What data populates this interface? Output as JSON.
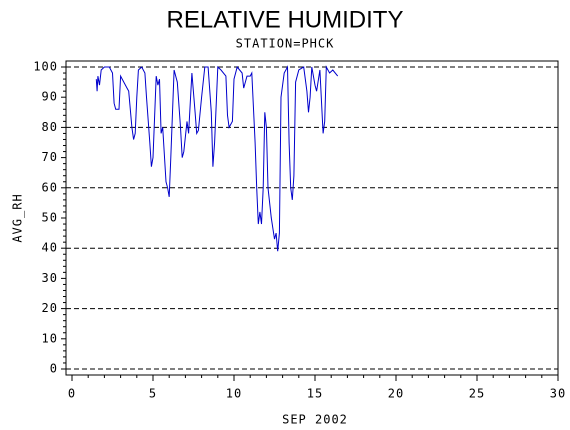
{
  "chart_data": {
    "type": "line",
    "title": "RELATIVE HUMIDITY",
    "subtitle": "STATION=PHCK",
    "x_label": "SEP 2002",
    "y_label": "AVG_RH",
    "xlim": [
      0,
      30
    ],
    "xticks": [
      0,
      5,
      10,
      15,
      20,
      25,
      30
    ],
    "ylim": [
      0,
      100
    ],
    "yticks": [
      0,
      10,
      20,
      30,
      40,
      50,
      60,
      70,
      80,
      90,
      100
    ],
    "grid": true,
    "series": [
      {
        "color": "#0000cc",
        "x": [
          1.5,
          1.55,
          1.6,
          1.7,
          1.8,
          2.0,
          2.3,
          2.5,
          2.6,
          2.7,
          2.9,
          3.0,
          3.2,
          3.5,
          3.7,
          3.8,
          3.9,
          4.0,
          4.1,
          4.3,
          4.5,
          4.6,
          4.8,
          4.9,
          5.0,
          5.2,
          5.3,
          5.4,
          5.5,
          5.6,
          5.8,
          5.9,
          6.0,
          6.1,
          6.3,
          6.5,
          6.7,
          6.8,
          6.9,
          7.1,
          7.2,
          7.4,
          7.6,
          7.7,
          7.8,
          8.0,
          8.2,
          8.4,
          8.6,
          8.7,
          8.8,
          9.0,
          9.2,
          9.5,
          9.6,
          9.7,
          9.9,
          10.0,
          10.2,
          10.5,
          10.6,
          10.8,
          11.0,
          11.1,
          11.3,
          11.4,
          11.5,
          11.6,
          11.7,
          11.8,
          11.9,
          12.0,
          12.1,
          12.3,
          12.5,
          12.6,
          12.7,
          12.8,
          12.9,
          13.1,
          13.3,
          13.4,
          13.5,
          13.6,
          13.7,
          13.8,
          14.0,
          14.3,
          14.5,
          14.6,
          14.7,
          14.8,
          15.0,
          15.1,
          15.3,
          15.5,
          15.6,
          15.7,
          15.9,
          16.1,
          16.4
        ],
        "values": [
          96,
          92,
          97,
          94,
          99,
          100,
          100,
          98,
          88,
          86,
          86,
          97,
          95,
          92,
          80,
          76,
          78,
          90,
          99,
          100,
          98,
          90,
          75,
          67,
          70,
          97,
          94,
          96,
          78,
          80,
          62,
          60,
          57,
          70,
          99,
          95,
          80,
          70,
          72,
          82,
          78,
          98,
          85,
          78,
          79,
          90,
          100,
          100,
          85,
          67,
          75,
          100,
          99,
          97,
          84,
          80,
          82,
          96,
          100,
          98,
          93,
          97,
          97,
          98,
          75,
          60,
          48,
          52,
          48,
          60,
          85,
          80,
          60,
          50,
          43,
          45,
          39,
          45,
          90,
          98,
          100,
          75,
          60,
          56,
          64,
          95,
          99,
          100,
          92,
          85,
          90,
          100,
          94,
          92,
          99,
          78,
          82,
          100,
          98,
          99,
          97
        ]
      }
    ]
  }
}
